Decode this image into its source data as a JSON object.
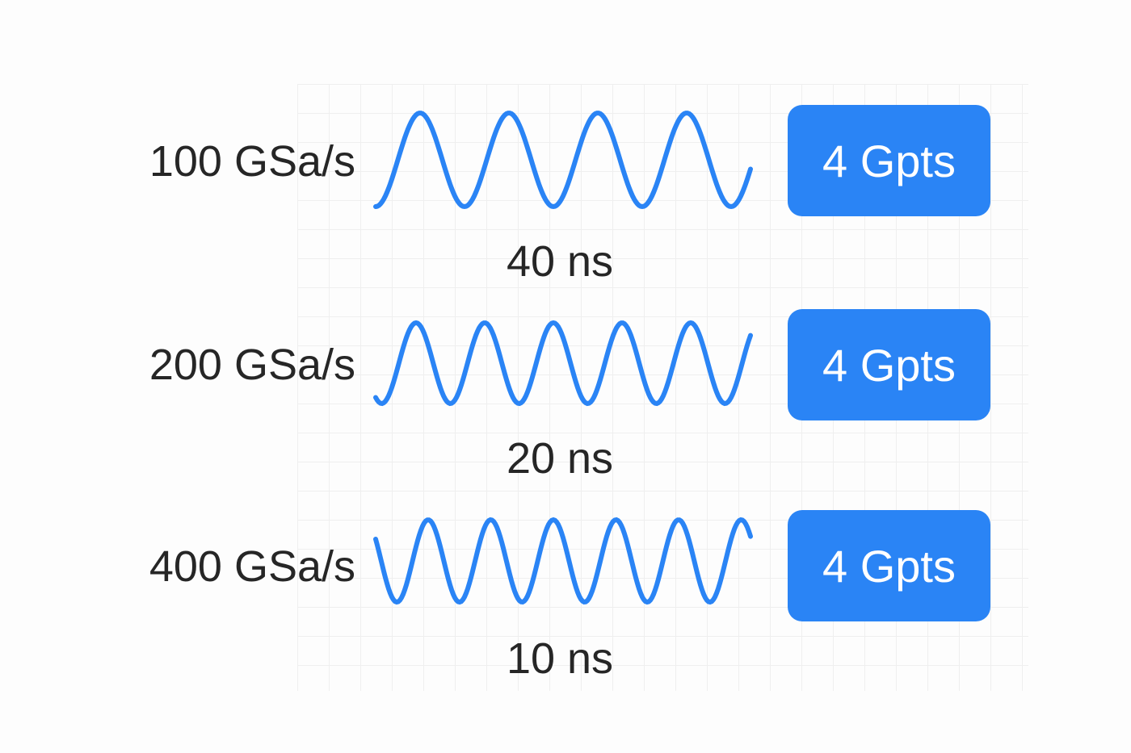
{
  "accent_color": "#2a84f5",
  "rows": [
    {
      "rate": "100 GSa/s",
      "duration": "40 ns",
      "points": "4 Gpts"
    },
    {
      "rate": "200 GSa/s",
      "duration": "20 ns",
      "points": "4 Gpts"
    },
    {
      "rate": "400 GSa/s",
      "duration": "10 ns",
      "points": "4 Gpts"
    }
  ]
}
